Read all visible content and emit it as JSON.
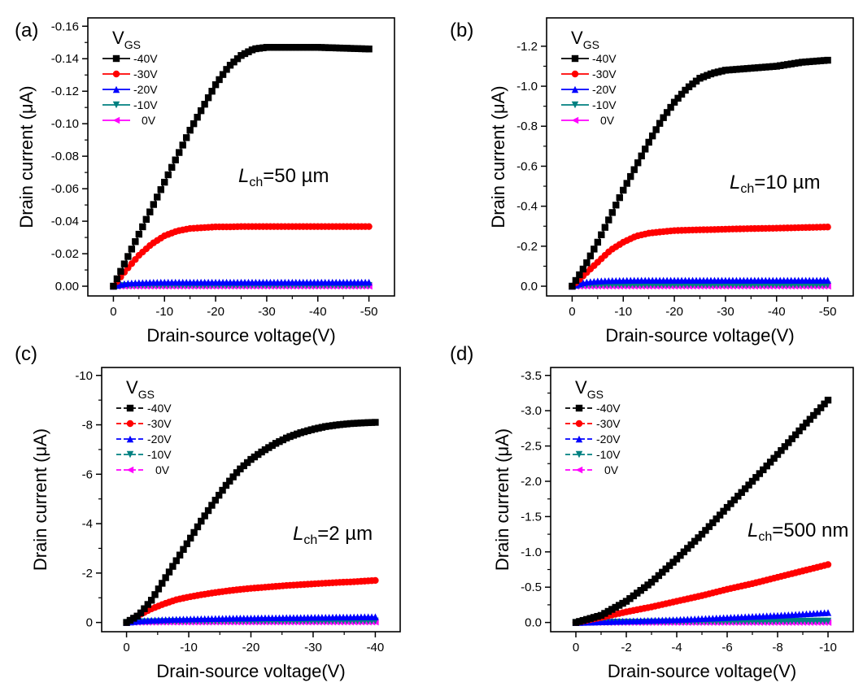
{
  "chart_data": [
    {
      "panel_label": "(a)",
      "type": "line",
      "xlabel": "Drain-source voltage(V)",
      "ylabel": "Drain current (μA)",
      "xlim": [
        0,
        -50
      ],
      "ylim": [
        0,
        -0.16
      ],
      "xticks": [
        "0",
        "-10",
        "-20",
        "-30",
        "-40",
        "-50"
      ],
      "yticks": [
        "0.00",
        "-0.02",
        "-0.04",
        "-0.06",
        "-0.08",
        "-0.10",
        "-0.12",
        "-0.14",
        "-0.16"
      ],
      "legend_title": "V_GS",
      "legend_position": "top-left",
      "annotation": {
        "main": "L",
        "sub": "ch",
        "rest": "=50 µm"
      },
      "x": [
        0,
        -2.5,
        -5,
        -7.5,
        -10,
        -12.5,
        -15,
        -17.5,
        -20,
        -22.5,
        -25,
        -27.5,
        -30,
        -35,
        -40,
        -45,
        -50
      ],
      "series": [
        {
          "name": "-40V",
          "color": "#000000",
          "marker": "square",
          "values": [
            0,
            -0.016,
            -0.032,
            -0.048,
            -0.064,
            -0.08,
            -0.096,
            -0.11,
            -0.124,
            -0.135,
            -0.142,
            -0.146,
            -0.147,
            -0.147,
            -0.147,
            -0.1465,
            -0.146
          ]
        },
        {
          "name": "-30V",
          "color": "#ff0000",
          "marker": "circle",
          "values": [
            0,
            -0.01,
            -0.019,
            -0.026,
            -0.031,
            -0.034,
            -0.0355,
            -0.036,
            -0.0365,
            -0.0365,
            -0.0367,
            -0.0367,
            -0.0367,
            -0.0367,
            -0.0367,
            -0.0367,
            -0.0367
          ]
        },
        {
          "name": "-20V",
          "color": "#0000ff",
          "marker": "triangle-up",
          "values": [
            0,
            -0.0018,
            -0.0022,
            -0.0024,
            -0.0025,
            -0.0025,
            -0.0025,
            -0.0025,
            -0.0025,
            -0.0025,
            -0.0025,
            -0.0025,
            -0.0025,
            -0.0025,
            -0.0025,
            -0.0025,
            -0.0025
          ]
        },
        {
          "name": "-10V",
          "color": "#008080",
          "marker": "triangle-down",
          "values": [
            0,
            -0.0004,
            -0.0005,
            -0.0005,
            -0.0005,
            -0.0005,
            -0.0005,
            -0.0005,
            -0.0005,
            -0.0005,
            -0.0005,
            -0.0005,
            -0.0005,
            -0.0005,
            -0.0005,
            -0.0005,
            -0.0005
          ]
        },
        {
          "name": "0V",
          "color": "#ff00ff",
          "marker": "triangle-left",
          "values": [
            0,
            0,
            0,
            0,
            0,
            0,
            0,
            0,
            0,
            0,
            0,
            0,
            0,
            0,
            0,
            0,
            0
          ]
        }
      ]
    },
    {
      "panel_label": "(b)",
      "type": "line",
      "xlabel": "Drain-source voltage(V)",
      "ylabel": "Drain current (μA)",
      "xlim": [
        0,
        -50
      ],
      "ylim": [
        0,
        -1.3
      ],
      "xticks": [
        "0",
        "-10",
        "-20",
        "-30",
        "-40",
        "-50"
      ],
      "yticks": [
        "0.0",
        "-0.2",
        "-0.4",
        "-0.6",
        "-0.8",
        "-1.0",
        "-1.2"
      ],
      "legend_title": "V_GS",
      "legend_position": "top-left",
      "annotation": {
        "main": "L",
        "sub": "ch",
        "rest": "=10 µm"
      },
      "x": [
        0,
        -2.5,
        -5,
        -7.5,
        -10,
        -12.5,
        -15,
        -17.5,
        -20,
        -22.5,
        -25,
        -27.5,
        -30,
        -35,
        -40,
        -45,
        -50
      ],
      "series": [
        {
          "name": "-40V",
          "color": "#000000",
          "marker": "square",
          "values": [
            0,
            -0.1,
            -0.22,
            -0.35,
            -0.48,
            -0.6,
            -0.72,
            -0.83,
            -0.92,
            -0.99,
            -1.04,
            -1.065,
            -1.08,
            -1.09,
            -1.1,
            -1.12,
            -1.13
          ]
        },
        {
          "name": "-30V",
          "color": "#ff0000",
          "marker": "circle",
          "values": [
            0,
            -0.06,
            -0.12,
            -0.18,
            -0.22,
            -0.25,
            -0.265,
            -0.272,
            -0.278,
            -0.28,
            -0.282,
            -0.283,
            -0.285,
            -0.288,
            -0.29,
            -0.293,
            -0.296
          ]
        },
        {
          "name": "-20V",
          "color": "#0000ff",
          "marker": "triangle-up",
          "values": [
            0,
            -0.02,
            -0.026,
            -0.028,
            -0.029,
            -0.03,
            -0.03,
            -0.03,
            -0.03,
            -0.03,
            -0.03,
            -0.03,
            -0.03,
            -0.03,
            -0.03,
            -0.03,
            -0.03
          ]
        },
        {
          "name": "-10V",
          "color": "#008080",
          "marker": "triangle-down",
          "values": [
            0,
            -0.005,
            -0.006,
            -0.006,
            -0.006,
            -0.006,
            -0.006,
            -0.006,
            -0.006,
            -0.006,
            -0.006,
            -0.006,
            -0.006,
            -0.006,
            -0.006,
            -0.006,
            -0.006
          ]
        },
        {
          "name": "0V",
          "color": "#ff00ff",
          "marker": "triangle-left",
          "values": [
            0,
            0,
            0,
            0,
            0,
            0,
            0,
            0,
            0,
            0,
            0,
            0,
            0,
            0,
            0,
            0,
            0
          ]
        }
      ]
    },
    {
      "panel_label": "(c)",
      "type": "line",
      "xlabel": "Drain-source voltage(V)",
      "ylabel": "Drain current (μA)",
      "xlim": [
        0,
        -40
      ],
      "ylim": [
        0,
        -10
      ],
      "xticks": [
        "0",
        "-10",
        "-20",
        "-30",
        "-40"
      ],
      "yticks": [
        "0",
        "-2",
        "-4",
        "-6",
        "-8",
        "-10"
      ],
      "legend_title": "V_GS",
      "legend_position": "top-left",
      "annotation": {
        "main": "L",
        "sub": "ch",
        "rest": "=2 µm"
      },
      "x": [
        0,
        -2,
        -4,
        -6,
        -8,
        -10,
        -12,
        -14,
        -16,
        -18,
        -20,
        -22,
        -24,
        -26,
        -28,
        -30,
        -32,
        -34,
        -36,
        -38,
        -40
      ],
      "series": [
        {
          "name": "-40V",
          "color": "#000000",
          "marker": "square",
          "values": [
            0,
            -0.3,
            -0.9,
            -1.7,
            -2.5,
            -3.3,
            -4.1,
            -4.85,
            -5.55,
            -6.15,
            -6.6,
            -6.95,
            -7.25,
            -7.5,
            -7.68,
            -7.82,
            -7.93,
            -8.0,
            -8.05,
            -8.08,
            -8.1
          ]
        },
        {
          "name": "-30V",
          "color": "#ff0000",
          "marker": "circle",
          "values": [
            0,
            -0.3,
            -0.55,
            -0.75,
            -0.92,
            -1.03,
            -1.12,
            -1.2,
            -1.27,
            -1.33,
            -1.38,
            -1.42,
            -1.46,
            -1.5,
            -1.53,
            -1.56,
            -1.59,
            -1.62,
            -1.64,
            -1.67,
            -1.7
          ]
        },
        {
          "name": "-20V",
          "color": "#0000ff",
          "marker": "triangle-up",
          "values": [
            0,
            -0.06,
            -0.09,
            -0.11,
            -0.13,
            -0.14,
            -0.15,
            -0.16,
            -0.17,
            -0.18,
            -0.18,
            -0.19,
            -0.19,
            -0.2,
            -0.2,
            -0.21,
            -0.21,
            -0.22,
            -0.22,
            -0.23,
            -0.23
          ]
        },
        {
          "name": "-10V",
          "color": "#008080",
          "marker": "triangle-down",
          "values": [
            0,
            -0.02,
            -0.03,
            -0.035,
            -0.04,
            -0.04,
            -0.045,
            -0.045,
            -0.05,
            -0.05,
            -0.05,
            -0.05,
            -0.05,
            -0.055,
            -0.055,
            -0.055,
            -0.055,
            -0.06,
            -0.06,
            -0.06,
            -0.06
          ]
        },
        {
          "name": "0V",
          "color": "#ff00ff",
          "marker": "triangle-left",
          "values": [
            0,
            -0.005,
            -0.008,
            -0.01,
            -0.01,
            -0.012,
            -0.012,
            -0.013,
            -0.013,
            -0.014,
            -0.014,
            -0.014,
            -0.015,
            -0.015,
            -0.015,
            -0.015,
            -0.016,
            -0.016,
            -0.016,
            -0.016,
            -0.016
          ]
        }
      ]
    },
    {
      "panel_label": "(d)",
      "type": "line",
      "xlabel": "Drain-source voltage(V)",
      "ylabel": "Drain current (μA)",
      "xlim": [
        0,
        -10
      ],
      "ylim": [
        0,
        -3.5
      ],
      "xticks": [
        "0",
        "-2",
        "-4",
        "-6",
        "-8",
        "-10"
      ],
      "yticks": [
        "0.0",
        "-0.5",
        "-1.0",
        "-1.5",
        "-2.0",
        "-2.5",
        "-3.0",
        "-3.5"
      ],
      "legend_title": "V_GS",
      "legend_position": "top-left",
      "annotation": {
        "main": "L",
        "sub": "ch",
        "rest": "=500 nm"
      },
      "x": [
        0,
        -1,
        -2,
        -3,
        -4,
        -5,
        -6,
        -7,
        -8,
        -9,
        -10
      ],
      "series": [
        {
          "name": "-40V",
          "color": "#000000",
          "marker": "square",
          "values": [
            0,
            -0.1,
            -0.3,
            -0.57,
            -0.9,
            -1.25,
            -1.63,
            -2.0,
            -2.38,
            -2.77,
            -3.15
          ]
        },
        {
          "name": "-30V",
          "color": "#ff0000",
          "marker": "circle",
          "values": [
            0,
            -0.07,
            -0.15,
            -0.22,
            -0.3,
            -0.38,
            -0.47,
            -0.55,
            -0.64,
            -0.73,
            -0.82
          ]
        },
        {
          "name": "-20V",
          "color": "#0000ff",
          "marker": "triangle-up",
          "values": [
            0,
            -0.01,
            -0.02,
            -0.03,
            -0.04,
            -0.055,
            -0.07,
            -0.085,
            -0.1,
            -0.12,
            -0.14
          ]
        },
        {
          "name": "-10V",
          "color": "#008080",
          "marker": "triangle-down",
          "values": [
            0,
            -0.002,
            -0.004,
            -0.006,
            -0.008,
            -0.01,
            -0.012,
            -0.014,
            -0.016,
            -0.018,
            -0.02
          ]
        },
        {
          "name": "0V",
          "color": "#ff00ff",
          "marker": "triangle-left",
          "values": [
            0,
            0,
            0,
            0,
            0,
            0,
            0,
            0,
            0,
            0,
            0
          ]
        }
      ]
    }
  ]
}
